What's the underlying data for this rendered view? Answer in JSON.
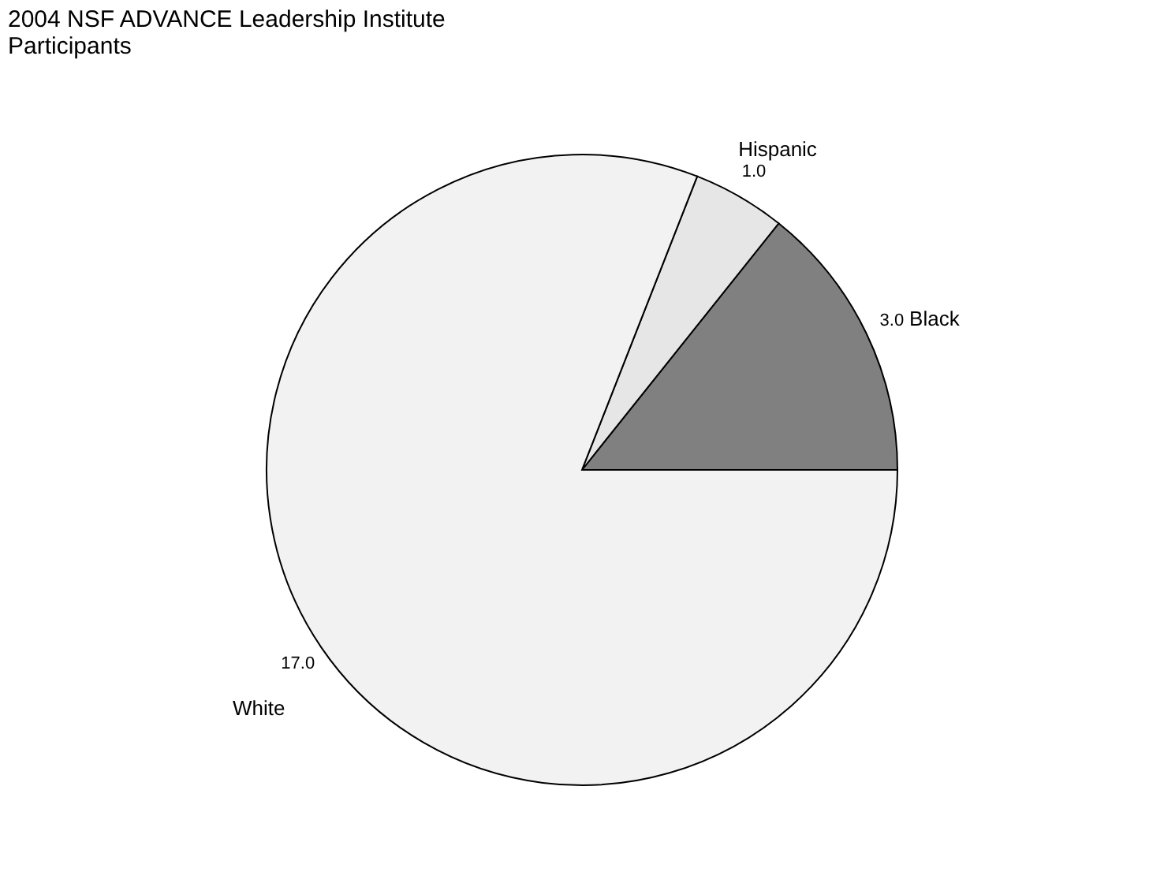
{
  "chart_data": {
    "type": "pie",
    "title": "2004 NSF ADVANCE Leadership Institute Participants",
    "categories": [
      "Black",
      "Hispanic",
      "White"
    ],
    "values": [
      3.0,
      1.0,
      17.0
    ],
    "value_labels": [
      "3.0",
      "1.0",
      "17.0"
    ],
    "colors": [
      "#808080",
      "#e6e6e6",
      "#f2f2f2"
    ]
  }
}
